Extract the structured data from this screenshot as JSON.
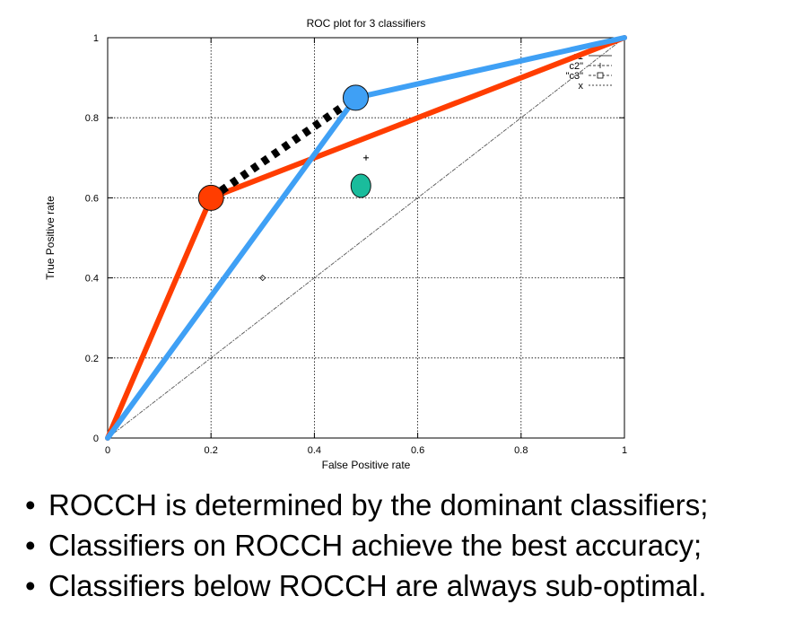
{
  "chart_data": {
    "type": "line",
    "title": "ROC plot for 3 classifiers",
    "xlabel": "False Positive rate",
    "ylabel": "True Positive rate",
    "xlim": [
      0,
      1
    ],
    "ylim": [
      0,
      1
    ],
    "xticks": [
      "0",
      "0.2",
      "0.4",
      "0.6",
      "0.8",
      "1"
    ],
    "yticks": [
      "0",
      "0.2",
      "0.4",
      "0.6",
      "0.8",
      "1"
    ],
    "grid": true,
    "legend": {
      "placement": "top-right",
      "entries": [
        "c1",
        "c2\"",
        "\"c3\"",
        "x"
      ]
    },
    "series": [
      {
        "color": "#ff3d00",
        "points": [
          [
            0,
            0
          ],
          [
            0.2,
            0.6
          ],
          [
            1,
            1
          ]
        ]
      },
      {
        "color": "#3fa0f5",
        "points": [
          [
            0,
            0
          ],
          [
            0.48,
            0.85
          ],
          [
            1,
            1
          ]
        ]
      },
      {
        "color": "#000000",
        "style": "dotted-thick",
        "points": [
          [
            0.2,
            0.6
          ],
          [
            0.48,
            0.85
          ]
        ]
      },
      {
        "color": "#555555",
        "style": "dash-dot",
        "points": [
          [
            0,
            0
          ],
          [
            1,
            1
          ]
        ]
      }
    ],
    "markers": [
      {
        "x": 0.2,
        "y": 0.6,
        "color": "#ff3d00",
        "shape": "circle"
      },
      {
        "x": 0.48,
        "y": 0.85,
        "color": "#3fa0f5",
        "shape": "circle"
      },
      {
        "x": 0.49,
        "y": 0.63,
        "color": "#1abc9c",
        "shape": "ellipse"
      },
      {
        "x": 0.5,
        "y": 0.7,
        "color": "#000000",
        "shape": "plus"
      },
      {
        "x": 0.3,
        "y": 0.4,
        "color": "#000000",
        "shape": "diamond"
      }
    ]
  },
  "bullets": [
    "ROCCH is determined by the dominant classifiers;",
    "Classifiers on ROCCH achieve the best accuracy;",
    "Classifiers below ROCCH are always sub-optimal."
  ],
  "bullet_symbol": "•"
}
